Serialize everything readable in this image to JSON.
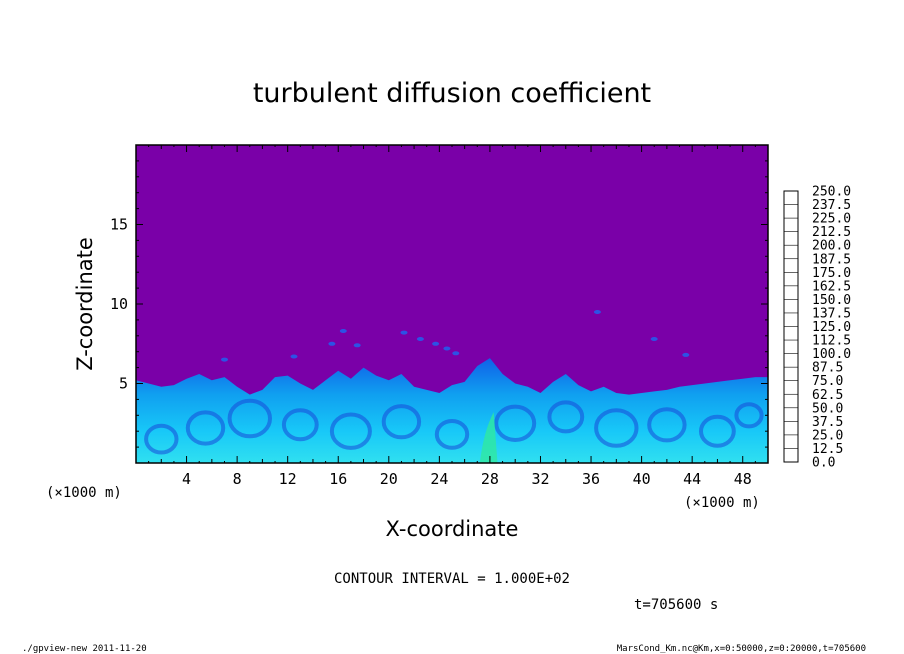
{
  "chart_data": {
    "type": "heatmap",
    "title": "turbulent diffusion coefficient",
    "xlabel": "X-coordinate",
    "ylabel": "Z-coordinate",
    "x_unit": "(×1000 m)",
    "y_unit": "(×1000 m)",
    "xlim": [
      0,
      50
    ],
    "ylim": [
      0,
      20
    ],
    "x_ticks": [
      4,
      8,
      12,
      16,
      20,
      24,
      28,
      32,
      36,
      40,
      44,
      48
    ],
    "x_tick_labels": [
      "4",
      "8",
      "12",
      "16",
      "20",
      "24",
      "28",
      "32",
      "36",
      "40",
      "44",
      "48"
    ],
    "y_ticks": [
      5,
      10,
      15
    ],
    "y_tick_labels": [
      "5",
      "10",
      "15"
    ],
    "colorbar_levels": [
      "0.0",
      "12.5",
      "25.0",
      "37.5",
      "50.0",
      "62.5",
      "75.0",
      "87.5",
      "100.0",
      "112.5",
      "125.0",
      "137.5",
      "150.0",
      "162.5",
      "175.0",
      "187.5",
      "200.0",
      "212.5",
      "225.0",
      "237.5",
      "250.0"
    ],
    "colorbar_colors": [
      "#7a00a8",
      "#3a00c8",
      "#0a10d8",
      "#0c40e6",
      "#1070f0",
      "#10a8f8",
      "#18d8f8",
      "#18e8c8",
      "#18e890",
      "#18e860",
      "#18e020",
      "#40e018",
      "#80e018",
      "#b8e818",
      "#e8e818",
      "#f8c818",
      "#f8a018",
      "#f87018",
      "#f84018",
      "#f81818",
      "#f89090"
    ],
    "boundary_layer_top": [
      [
        0,
        5.2
      ],
      [
        1,
        5.0
      ],
      [
        2,
        4.8
      ],
      [
        3,
        4.9
      ],
      [
        4,
        5.3
      ],
      [
        5,
        5.6
      ],
      [
        6,
        5.2
      ],
      [
        7,
        5.4
      ],
      [
        8,
        4.8
      ],
      [
        9,
        4.3
      ],
      [
        10,
        4.6
      ],
      [
        11,
        5.4
      ],
      [
        12,
        5.5
      ],
      [
        13,
        5.0
      ],
      [
        14,
        4.6
      ],
      [
        15,
        5.2
      ],
      [
        16,
        5.8
      ],
      [
        17,
        5.3
      ],
      [
        18,
        6.0
      ],
      [
        19,
        5.5
      ],
      [
        20,
        5.2
      ],
      [
        21,
        5.6
      ],
      [
        22,
        4.8
      ],
      [
        23,
        4.6
      ],
      [
        24,
        4.4
      ],
      [
        25,
        4.9
      ],
      [
        26,
        5.1
      ],
      [
        27,
        6.1
      ],
      [
        28,
        6.6
      ],
      [
        29,
        5.6
      ],
      [
        30,
        5.0
      ],
      [
        31,
        4.8
      ],
      [
        32,
        4.4
      ],
      [
        33,
        5.1
      ],
      [
        34,
        5.6
      ],
      [
        35,
        4.9
      ],
      [
        36,
        4.5
      ],
      [
        37,
        4.8
      ],
      [
        38,
        4.4
      ],
      [
        39,
        4.3
      ],
      [
        40,
        4.4
      ],
      [
        41,
        4.5
      ],
      [
        42,
        4.6
      ],
      [
        43,
        4.8
      ],
      [
        44,
        4.9
      ],
      [
        45,
        5.0
      ],
      [
        46,
        5.1
      ],
      [
        47,
        5.2
      ],
      [
        48,
        5.3
      ],
      [
        49,
        5.4
      ],
      [
        50,
        5.4
      ]
    ],
    "background_value": 0.0
  },
  "contour_interval_text": "CONTOUR INTERVAL = 1.000E+02",
  "time_text": "t=705600 s",
  "footer_left": "./gpview-new  2011-11-20",
  "footer_right": "MarsCond_Km.nc@Km,x=0:50000,z=0:20000,t=705600"
}
